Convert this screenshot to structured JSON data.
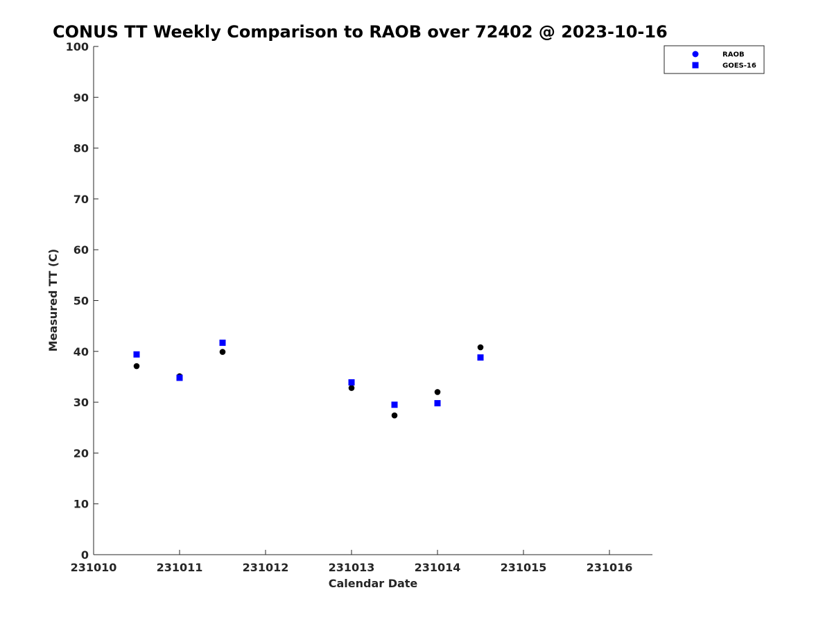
{
  "chart_data": {
    "type": "scatter",
    "title": "CONUS TT Weekly Comparison to RAOB over 72402 @ 2023-10-16",
    "xlabel": "Calendar Date",
    "ylabel": "Measured TT (C)",
    "xlim": [
      231010,
      231016.5
    ],
    "ylim": [
      0,
      100
    ],
    "xticks": [
      231010,
      231011,
      231012,
      231013,
      231014,
      231015,
      231016
    ],
    "yticks": [
      0,
      10,
      20,
      30,
      40,
      50,
      60,
      70,
      80,
      90,
      100
    ],
    "legend_position": "top-right, outside plot area",
    "series": [
      {
        "name": "RAOB",
        "marker": "circle",
        "legend_color": "#0000ff",
        "point_color": "#000000",
        "x": [
          231010.5,
          231011,
          231011.5,
          231013,
          231013.5,
          231014,
          231014.5
        ],
        "y": [
          37.1,
          35.1,
          39.9,
          32.8,
          27.4,
          32.0,
          40.8
        ]
      },
      {
        "name": "GOES-16",
        "marker": "square",
        "legend_color": "#0000ff",
        "point_color": "#0000ff",
        "x": [
          231010.5,
          231011,
          231011.5,
          231013,
          231013.5,
          231014,
          231014.5
        ],
        "y": [
          39.4,
          34.8,
          41.7,
          33.9,
          29.5,
          29.8,
          38.8
        ]
      }
    ]
  }
}
